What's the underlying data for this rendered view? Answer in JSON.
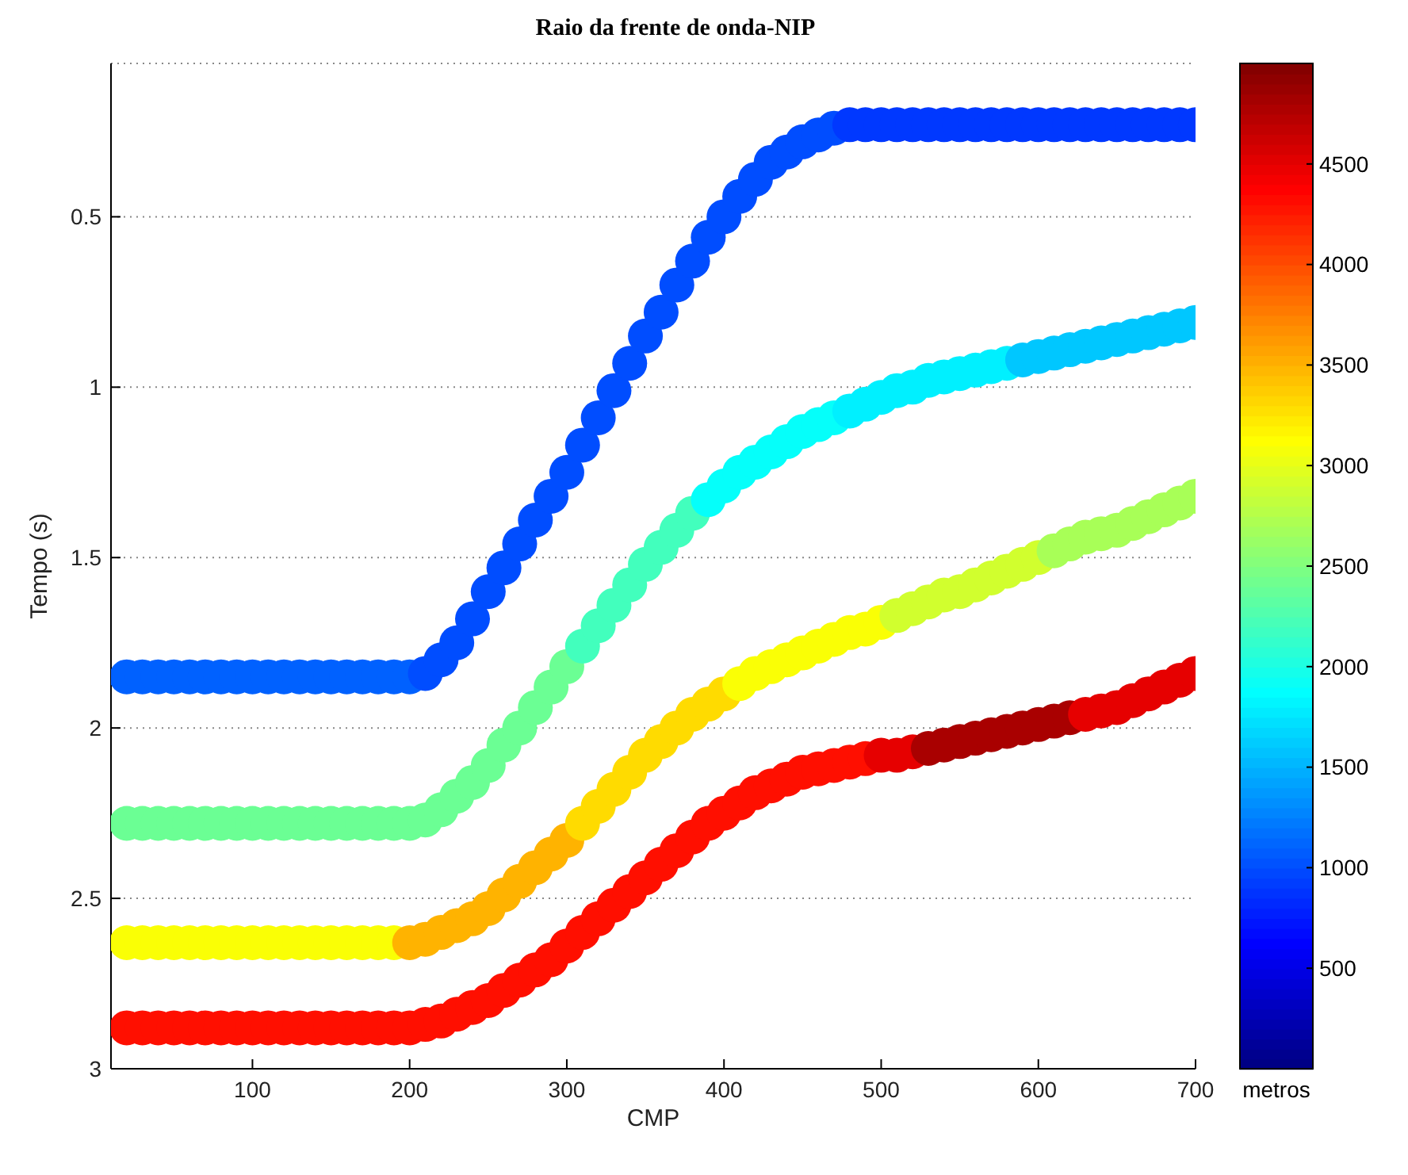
{
  "chart_data": {
    "type": "scatter",
    "title": "Raio da frente de onda-NIP",
    "xlabel": "CMP",
    "ylabel": "Tempo (s)",
    "clabel": "metros",
    "xlim": [
      10,
      700
    ],
    "xticks": [
      100,
      200,
      300,
      400,
      500,
      600,
      700
    ],
    "ylim": [
      3,
      0.05
    ],
    "yticks": [
      0.5,
      1,
      1.5,
      2,
      2.5,
      3
    ],
    "grid": "y",
    "marker": "circle",
    "clim": [
      0,
      5000
    ],
    "cticks": [
      500,
      1000,
      1500,
      2000,
      2500,
      3000,
      3500,
      4000,
      4500
    ],
    "x": [
      20,
      30,
      40,
      50,
      60,
      70,
      80,
      90,
      100,
      110,
      120,
      130,
      140,
      150,
      160,
      170,
      180,
      190,
      200,
      210,
      220,
      230,
      240,
      250,
      260,
      270,
      280,
      290,
      300,
      310,
      320,
      330,
      340,
      350,
      360,
      370,
      380,
      390,
      400,
      410,
      420,
      430,
      440,
      450,
      460,
      470,
      480,
      490,
      500,
      510,
      520,
      530,
      540,
      550,
      560,
      570,
      580,
      590,
      600,
      610,
      620,
      630,
      640,
      650,
      660,
      670,
      680,
      690,
      700
    ],
    "series": [
      {
        "values": [
          1.85,
          1.85,
          1.85,
          1.85,
          1.85,
          1.85,
          1.85,
          1.85,
          1.85,
          1.85,
          1.85,
          1.85,
          1.85,
          1.85,
          1.85,
          1.85,
          1.85,
          1.85,
          1.85,
          1.84,
          1.8,
          1.75,
          1.68,
          1.6,
          1.53,
          1.46,
          1.39,
          1.32,
          1.25,
          1.17,
          1.09,
          1.01,
          0.93,
          0.85,
          0.78,
          0.7,
          0.63,
          0.56,
          0.5,
          0.44,
          0.39,
          0.34,
          0.31,
          0.28,
          0.26,
          0.24,
          0.23,
          0.23,
          0.23,
          0.23,
          0.23,
          0.23,
          0.23,
          0.23,
          0.23,
          0.23,
          0.23,
          0.23,
          0.23,
          0.23,
          0.23,
          0.23,
          0.23,
          0.23,
          0.23,
          0.23,
          0.23,
          0.23,
          0.23
        ],
        "colors": [
          "#0061ff",
          "#0061ff",
          "#0061ff",
          "#0061ff",
          "#0061ff",
          "#0061ff",
          "#0061ff",
          "#0061ff",
          "#0061ff",
          "#0061ff",
          "#0061ff",
          "#0061ff",
          "#0061ff",
          "#0061ff",
          "#0061ff",
          "#0061ff",
          "#0061ff",
          "#0061ff",
          "#0061ff",
          "#004dff",
          "#004dff",
          "#004dff",
          "#004dff",
          "#004dff",
          "#004dff",
          "#004dff",
          "#004dff",
          "#004dff",
          "#004dff",
          "#004dff",
          "#004dff",
          "#004dff",
          "#004dff",
          "#004dff",
          "#004dff",
          "#004dff",
          "#004dff",
          "#004dff",
          "#004dff",
          "#004dff",
          "#004dff",
          "#004dff",
          "#004dff",
          "#004dff",
          "#004dff",
          "#004dff",
          "#0038ff",
          "#0038ff",
          "#0038ff",
          "#0038ff",
          "#0038ff",
          "#0038ff",
          "#0038ff",
          "#0038ff",
          "#0038ff",
          "#0038ff",
          "#0038ff",
          "#0038ff",
          "#0038ff",
          "#0038ff",
          "#0038ff",
          "#0038ff",
          "#0038ff",
          "#0038ff",
          "#0038ff",
          "#0038ff",
          "#0038ff",
          "#0038ff",
          "#0038ff"
        ]
      },
      {
        "values": [
          2.28,
          2.28,
          2.28,
          2.28,
          2.28,
          2.28,
          2.28,
          2.28,
          2.28,
          2.28,
          2.28,
          2.28,
          2.28,
          2.28,
          2.28,
          2.28,
          2.28,
          2.28,
          2.28,
          2.27,
          2.24,
          2.2,
          2.16,
          2.11,
          2.05,
          2.0,
          1.94,
          1.88,
          1.82,
          1.76,
          1.7,
          1.64,
          1.58,
          1.52,
          1.47,
          1.42,
          1.37,
          1.33,
          1.29,
          1.25,
          1.22,
          1.19,
          1.16,
          1.13,
          1.11,
          1.09,
          1.07,
          1.05,
          1.03,
          1.01,
          1.0,
          0.98,
          0.97,
          0.96,
          0.95,
          0.94,
          0.93,
          0.92,
          0.91,
          0.9,
          0.89,
          0.88,
          0.87,
          0.86,
          0.85,
          0.84,
          0.83,
          0.82,
          0.81
        ],
        "colors": [
          "#6bff94",
          "#6bff94",
          "#6bff94",
          "#6bff94",
          "#6bff94",
          "#6bff94",
          "#6bff94",
          "#6bff94",
          "#6bff94",
          "#6bff94",
          "#6bff94",
          "#6bff94",
          "#6bff94",
          "#6bff94",
          "#6bff94",
          "#6bff94",
          "#6bff94",
          "#6bff94",
          "#6bff94",
          "#6bff94",
          "#6bff94",
          "#6bff94",
          "#6bff94",
          "#6bff94",
          "#6bff94",
          "#6bff94",
          "#6bff94",
          "#6bff94",
          "#6bff94",
          "#42ffbd",
          "#42ffbd",
          "#42ffbd",
          "#42ffbd",
          "#42ffbd",
          "#42ffbd",
          "#42ffbd",
          "#42ffbd",
          "#05fffa",
          "#05fffa",
          "#05fffa",
          "#05fffa",
          "#05fffa",
          "#05fffa",
          "#05fffa",
          "#05fffa",
          "#05fffa",
          "#00f0ff",
          "#00f0ff",
          "#00f0ff",
          "#00f0ff",
          "#00f0ff",
          "#00f0ff",
          "#00f0ff",
          "#00f0ff",
          "#00f0ff",
          "#00f0ff",
          "#00f0ff",
          "#00c7ff",
          "#00c7ff",
          "#00c7ff",
          "#00c7ff",
          "#00c7ff",
          "#00c7ff",
          "#00c7ff",
          "#00c7ff",
          "#00c7ff",
          "#00c7ff",
          "#00c7ff",
          "#00c7ff"
        ]
      },
      {
        "values": [
          2.63,
          2.63,
          2.63,
          2.63,
          2.63,
          2.63,
          2.63,
          2.63,
          2.63,
          2.63,
          2.63,
          2.63,
          2.63,
          2.63,
          2.63,
          2.63,
          2.63,
          2.63,
          2.63,
          2.62,
          2.6,
          2.58,
          2.56,
          2.53,
          2.49,
          2.45,
          2.41,
          2.37,
          2.33,
          2.28,
          2.23,
          2.18,
          2.13,
          2.08,
          2.04,
          2.0,
          1.96,
          1.93,
          1.9,
          1.87,
          1.84,
          1.82,
          1.8,
          1.78,
          1.76,
          1.74,
          1.72,
          1.71,
          1.69,
          1.67,
          1.65,
          1.63,
          1.61,
          1.6,
          1.58,
          1.56,
          1.54,
          1.52,
          1.5,
          1.48,
          1.46,
          1.44,
          1.43,
          1.42,
          1.4,
          1.38,
          1.36,
          1.34,
          1.32
        ],
        "colors": [
          "#faff05",
          "#faff05",
          "#faff05",
          "#faff05",
          "#faff05",
          "#faff05",
          "#faff05",
          "#faff05",
          "#faff05",
          "#faff05",
          "#faff05",
          "#faff05",
          "#faff05",
          "#faff05",
          "#faff05",
          "#faff05",
          "#faff05",
          "#faff05",
          "#ffb300",
          "#ffb300",
          "#ffb300",
          "#ffb300",
          "#ffb300",
          "#ffb300",
          "#ffb300",
          "#ffb300",
          "#ffb300",
          "#ffb300",
          "#ffb300",
          "#ffdb00",
          "#ffdb00",
          "#ffdb00",
          "#ffdb00",
          "#ffdb00",
          "#ffdb00",
          "#ffdb00",
          "#ffdb00",
          "#ffdb00",
          "#ffdb00",
          "#faff05",
          "#faff05",
          "#faff05",
          "#faff05",
          "#faff05",
          "#faff05",
          "#faff05",
          "#faff05",
          "#faff05",
          "#faff05",
          "#d1ff2e",
          "#d1ff2e",
          "#d1ff2e",
          "#d1ff2e",
          "#d1ff2e",
          "#d1ff2e",
          "#d1ff2e",
          "#d1ff2e",
          "#d1ff2e",
          "#d1ff2e",
          "#a8ff57",
          "#a8ff57",
          "#a8ff57",
          "#a8ff57",
          "#a8ff57",
          "#a8ff57",
          "#a8ff57",
          "#a8ff57",
          "#a8ff57",
          "#a8ff57"
        ]
      },
      {
        "values": [
          2.88,
          2.88,
          2.88,
          2.88,
          2.88,
          2.88,
          2.88,
          2.88,
          2.88,
          2.88,
          2.88,
          2.88,
          2.88,
          2.88,
          2.88,
          2.88,
          2.88,
          2.88,
          2.88,
          2.87,
          2.86,
          2.84,
          2.82,
          2.8,
          2.77,
          2.74,
          2.71,
          2.68,
          2.64,
          2.6,
          2.56,
          2.52,
          2.48,
          2.44,
          2.4,
          2.36,
          2.32,
          2.28,
          2.25,
          2.22,
          2.19,
          2.17,
          2.15,
          2.13,
          2.12,
          2.11,
          2.1,
          2.09,
          2.08,
          2.08,
          2.07,
          2.06,
          2.05,
          2.04,
          2.03,
          2.02,
          2.01,
          2.0,
          1.99,
          1.98,
          1.97,
          1.96,
          1.95,
          1.94,
          1.92,
          1.9,
          1.88,
          1.86,
          1.84
        ],
        "colors": [
          "#ff0f00",
          "#ff0f00",
          "#ff0f00",
          "#ff0f00",
          "#ff0f00",
          "#ff0f00",
          "#ff0f00",
          "#ff0f00",
          "#ff0f00",
          "#ff0f00",
          "#ff0f00",
          "#ff0f00",
          "#ff0f00",
          "#ff0f00",
          "#ff0f00",
          "#ff0f00",
          "#ff0f00",
          "#ff0f00",
          "#ff0f00",
          "#ff0f00",
          "#ff0f00",
          "#ff0f00",
          "#ff0f00",
          "#ff0f00",
          "#ff0f00",
          "#ff0f00",
          "#ff0f00",
          "#ff0f00",
          "#ff0f00",
          "#ff0f00",
          "#ff0f00",
          "#ff0f00",
          "#ff0f00",
          "#ff0f00",
          "#ff0f00",
          "#ff0f00",
          "#ff0f00",
          "#ff0f00",
          "#ff0f00",
          "#ff0f00",
          "#ff0f00",
          "#ff0f00",
          "#ff0f00",
          "#ff0f00",
          "#ff0f00",
          "#ff0f00",
          "#ff0f00",
          "#ff0f00",
          "#e60000",
          "#e60000",
          "#e60000",
          "#a90000",
          "#a90000",
          "#a90000",
          "#a90000",
          "#a90000",
          "#a90000",
          "#a90000",
          "#a90000",
          "#a90000",
          "#a90000",
          "#e60000",
          "#e60000",
          "#e60000",
          "#e60000",
          "#e60000",
          "#e60000",
          "#e60000",
          "#e60000"
        ]
      }
    ]
  }
}
